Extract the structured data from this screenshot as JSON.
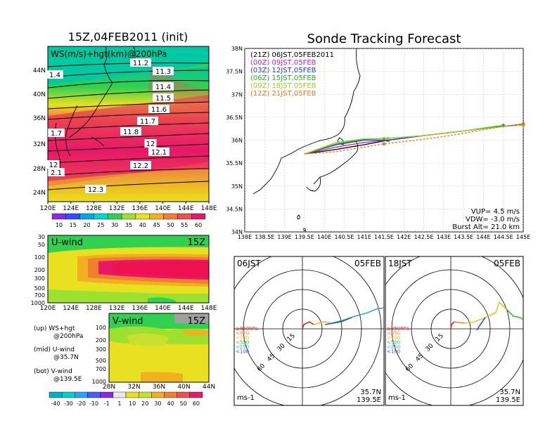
{
  "left": {
    "title": "15Z,04FEB2011 (init)",
    "map": {
      "label": "WS(m/s)+hgt(km)@200hPa",
      "lon_ticks": [
        "120E",
        "124E",
        "128E",
        "132E",
        "136E",
        "140E",
        "144E",
        "148E"
      ],
      "lat_ticks": [
        "44N",
        "40N",
        "36N",
        "32N",
        "28N",
        "24N"
      ],
      "contour_labels": [
        "11.2",
        "11.3",
        "11.4",
        "11.5",
        "11.6",
        "11.7",
        "11.8",
        "12",
        "12.1",
        "12.2",
        "12.3",
        "1.4",
        "1.7",
        "12",
        "2.1"
      ],
      "colorbar_ticks": [
        "10",
        "15",
        "20",
        "25",
        "30",
        "35",
        "40",
        "45",
        "50",
        "55",
        "60"
      ],
      "colorbar_colors": [
        "#8a2be2",
        "#3050ff",
        "#00a8e8",
        "#00d8c8",
        "#30d050",
        "#9ce030",
        "#e8e020",
        "#f0b020",
        "#f08030",
        "#f05050",
        "#e81868"
      ]
    },
    "uwind": {
      "label": "U-wind",
      "time": "15Z",
      "p_ticks": [
        "30",
        "50",
        "100",
        "200",
        "300",
        "500",
        "700",
        "1000"
      ],
      "lon_ticks": [
        "120E",
        "124E",
        "128E",
        "132E",
        "136E",
        "140E",
        "144E",
        "148E"
      ]
    },
    "vwind": {
      "label": "V-wind",
      "time": "15Z",
      "p_ticks": [
        "100",
        "200",
        "300",
        "500",
        "700",
        "1000"
      ],
      "lat_ticks": [
        "28N",
        "32N",
        "36N",
        "40N",
        "44N"
      ]
    },
    "legend": {
      "up": "(up) WS+hgt",
      "up2": "@200hPa",
      "mid": "(mid) U-wind",
      "mid2": "@35.7N",
      "bot": "(bot) V-wind",
      "bot2": "@139.5E"
    },
    "bottom_colorbar": {
      "ticks": [
        "-40",
        "-30",
        "-20",
        "-10",
        "-1",
        "1",
        "10",
        "20",
        "30",
        "40",
        "50",
        "60"
      ],
      "colors": [
        "#00b0c8",
        "#00d0d0",
        "#30a0ff",
        "#4060ff",
        "#8a2be2",
        "#e8e8e8",
        "#e8e020",
        "#c8e030",
        "#f0b020",
        "#f08030",
        "#f05050",
        "#e81868"
      ]
    }
  },
  "right": {
    "title": "Sonde Tracking Forecast",
    "axes": {
      "lat_ticks": [
        "38N",
        "37.5N",
        "37N",
        "36.5N",
        "36N",
        "35.5N",
        "35N",
        "34.5N",
        "34N"
      ],
      "lon_ticks": [
        "138E",
        "138.5E",
        "139E",
        "139.5E",
        "140E",
        "140.5E",
        "141E",
        "141.5E",
        "142E",
        "142.5E",
        "143E",
        "143.5E",
        "144E",
        "144.5E",
        "145E"
      ]
    },
    "legend": [
      {
        "text": "(21Z) 06JST,05FEB2011",
        "color": "#000000"
      },
      {
        "text": "(00Z) 09JST,05FEB",
        "color": "#c020c0"
      },
      {
        "text": "(03Z) 12JST,05FEB",
        "color": "#2040e0"
      },
      {
        "text": "(06Z) 15JST,05FEB",
        "color": "#20b020"
      },
      {
        "text": "(09Z) 18JST,05FEB",
        "color": "#a0d020"
      },
      {
        "text": "(12Z) 21JST,05FEB",
        "color": "#e87820"
      }
    ],
    "params": {
      "vup": "VUP= 4.5 m/s",
      "vdw": "VDW= -3.0 m/s",
      "burst": "Burst Alt= 21.0 km"
    }
  },
  "hodos": [
    {
      "time": "06JST",
      "date": "05FEB",
      "lat": "35.7N",
      "lon": "139.5E",
      "unit": "ms-1"
    },
    {
      "time": "18JST",
      "date": "05FEB",
      "lat": "35.7N",
      "lon": "139.5E",
      "unit": "ms-1"
    }
  ],
  "hodo_rings": [
    "15",
    "30",
    "45",
    "60"
  ],
  "hodo_levels": [
    {
      "text": "≥850hPa",
      "color": "#e02020"
    },
    {
      "text": "<850",
      "color": "#f08030"
    },
    {
      "text": "<700",
      "color": "#e8c020"
    },
    {
      "text": "<500",
      "color": "#30c030"
    },
    {
      "text": "<250",
      "color": "#20b0d0"
    },
    {
      "text": "<100",
      "color": "#3050e0"
    }
  ],
  "chart_data": [
    {
      "type": "line",
      "title": "Sonde Tracking Forecast",
      "x_axis": "longitude",
      "y_axis": "latitude",
      "xlim": [
        138,
        145
      ],
      "ylim": [
        34,
        38
      ],
      "series": [
        {
          "name": "(21Z) 06JST,05FEB2011",
          "color": "#000000",
          "points": [
            [
              139.5,
              35.7
            ],
            [
              140.3,
              35.8
            ],
            [
              141.0,
              35.9
            ],
            [
              141.6,
              36.0
            ],
            [
              142.5,
              36.1
            ],
            [
              143.5,
              36.2
            ],
            [
              144.5,
              36.3
            ],
            [
              145.0,
              36.35
            ]
          ]
        },
        {
          "name": "(00Z) 09JST,05FEB",
          "color": "#c020c0",
          "points": [
            [
              139.5,
              35.7
            ],
            [
              140.3,
              35.85
            ],
            [
              141.0,
              35.95
            ],
            [
              141.6,
              36.0
            ],
            [
              142.5,
              36.1
            ],
            [
              143.5,
              36.2
            ],
            [
              144.5,
              36.3
            ],
            [
              145.0,
              36.33
            ]
          ]
        },
        {
          "name": "(03Z) 12JST,05FEB",
          "color": "#2040e0",
          "points": [
            [
              139.5,
              35.7
            ],
            [
              140.3,
              35.9
            ],
            [
              141.0,
              36.0
            ],
            [
              141.6,
              36.0
            ],
            [
              142.5,
              36.1
            ],
            [
              143.5,
              36.2
            ],
            [
              144.5,
              36.3
            ],
            [
              145.0,
              36.34
            ]
          ]
        },
        {
          "name": "(06Z) 15JST,05FEB",
          "color": "#20b020",
          "points": [
            [
              139.5,
              35.7
            ],
            [
              140.3,
              35.92
            ],
            [
              141.0,
              36.02
            ],
            [
              141.5,
              36.03
            ],
            [
              142.5,
              36.1
            ],
            [
              143.5,
              36.2
            ],
            [
              144.3,
              36.3
            ],
            [
              144.5,
              36.32
            ]
          ]
        },
        {
          "name": "(09Z) 18JST,05FEB",
          "color": "#a0d020",
          "points": [
            [
              139.5,
              35.7
            ],
            [
              140.3,
              35.95
            ],
            [
              141.0,
              36.03
            ],
            [
              141.6,
              36.04
            ],
            [
              142.5,
              36.1
            ],
            [
              143.5,
              36.2
            ],
            [
              144.5,
              36.3
            ],
            [
              145.0,
              36.33
            ]
          ]
        },
        {
          "name": "(12Z) 21JST,05FEB",
          "color": "#e87820",
          "points": [
            [
              139.5,
              35.7
            ],
            [
              140.3,
              35.75
            ],
            [
              141.0,
              35.85
            ],
            [
              141.5,
              35.92
            ],
            [
              142.3,
              36.0
            ],
            [
              143.0,
              36.08
            ],
            [
              143.5,
              36.15
            ],
            [
              144.5,
              36.3
            ],
            [
              145.0,
              36.35
            ]
          ]
        }
      ]
    }
  ]
}
